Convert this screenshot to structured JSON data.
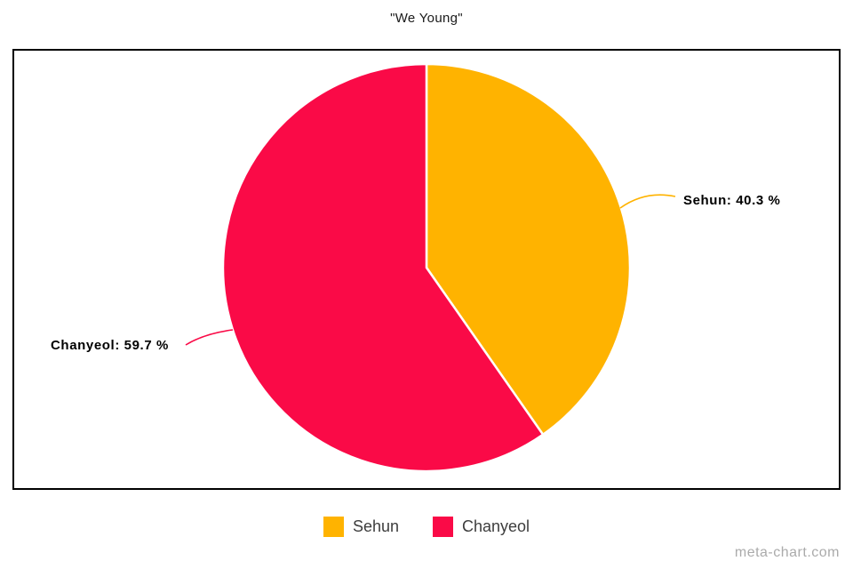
{
  "title": "\"We Young\"",
  "chart_data": {
    "type": "pie",
    "title": "\"We Young\"",
    "labels": [
      "Sehun",
      "Chanyeol"
    ],
    "values": [
      40.3,
      59.7
    ],
    "unit": "%",
    "colors": [
      "#ffb300",
      "#fa0a47"
    ],
    "start_angle_deg": 0,
    "direction": "clockwise",
    "slice_separator_color": "#ffffff",
    "legend_position": "bottom"
  },
  "slice_labels": [
    "Sehun: 40.3 %",
    "Chanyeol: 59.7 %"
  ],
  "legend": {
    "items": [
      {
        "label": "Sehun",
        "color": "#ffb300"
      },
      {
        "label": "Chanyeol",
        "color": "#fa0a47"
      }
    ]
  },
  "watermark": "meta-chart.com"
}
